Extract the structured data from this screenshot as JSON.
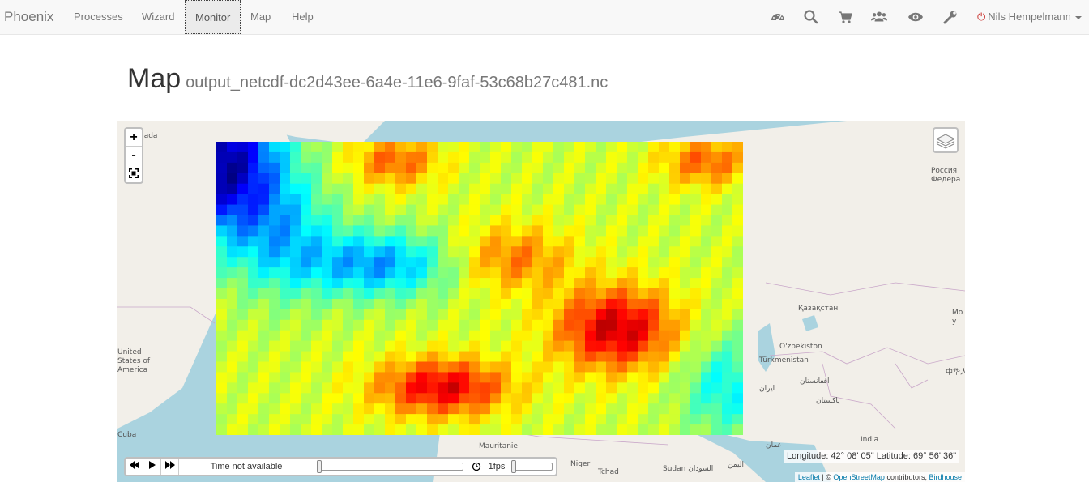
{
  "navbar": {
    "brand": "Phoenix",
    "links": [
      {
        "label": "Processes"
      },
      {
        "label": "Wizard"
      },
      {
        "label": "Monitor",
        "active": true
      },
      {
        "label": "Map"
      },
      {
        "label": "Help"
      }
    ],
    "icons": [
      "dashboard-icon",
      "search-icon",
      "cart-icon",
      "users-icon",
      "eye-icon",
      "wrench-icon"
    ],
    "user": "Nils Hempelmann",
    "user_icon": "power-icon"
  },
  "page": {
    "title": "Map",
    "subtitle": "output_netcdf-dc2d43ee-6a4e-11e6-9faf-53c68b27c481.nc"
  },
  "map": {
    "labels": [
      "nada",
      "Россия Федера",
      "Қазақстан",
      "Мо у",
      "O'zbekiston",
      "Türkmenistan",
      "中华人",
      "افغانستان",
      "ایران",
      "پاکستان",
      "India",
      "عمان",
      "United States of America",
      "Mauritanie",
      "Niger",
      "Tchad",
      "Sudan السودان",
      "اليمن",
      "Cuba"
    ],
    "coordinates": "Longitude: 42° 08' 05\" Latitude: 69° 56' 36\"",
    "attribution": {
      "leaflet": "Leaflet",
      "sep": " | © ",
      "osm": "OpenStreetMap",
      "contrib": " contributors, ",
      "birdhouse": "Birdhouse"
    },
    "zoom_in": "+",
    "zoom_out": "-",
    "layers_icon": "layers-icon"
  },
  "timedimension": {
    "time_label": "Time not available",
    "fps_label": "1fps",
    "buttons": [
      "backward-icon",
      "play-icon",
      "forward-icon",
      "loop-icon"
    ]
  },
  "colors": {
    "navbar_bg": "#f8f8f8",
    "water": "#aad3df",
    "land": "#f2efe9",
    "power": "#c9302c"
  }
}
